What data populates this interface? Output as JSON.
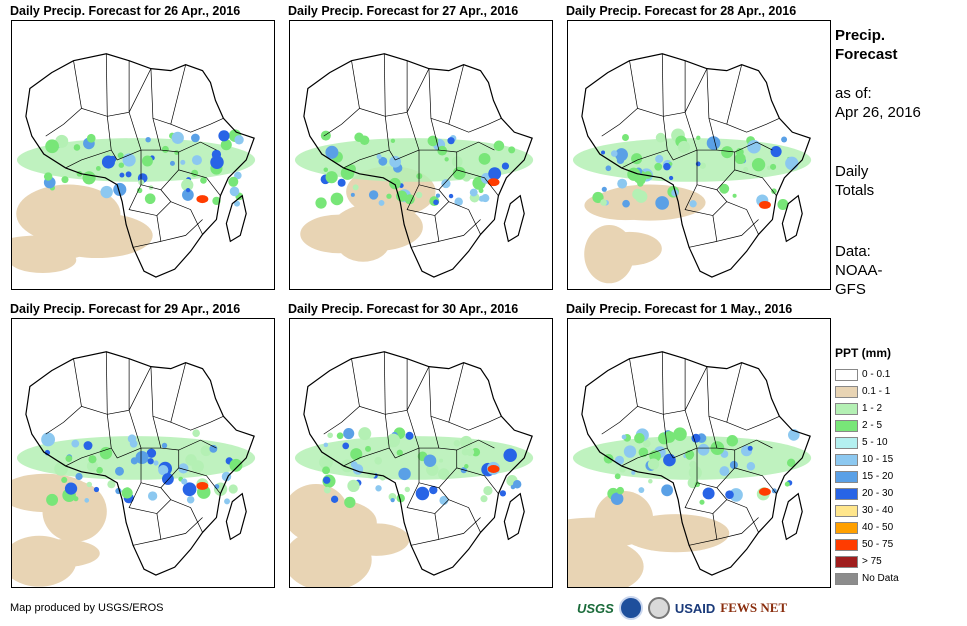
{
  "panels": [
    {
      "title": "Daily Precip. Forecast for 26 Apr., 2016"
    },
    {
      "title": "Daily Precip. Forecast for 27 Apr., 2016"
    },
    {
      "title": "Daily Precip. Forecast for 28 Apr., 2016"
    },
    {
      "title": "Daily Precip. Forecast for 29 Apr., 2016"
    },
    {
      "title": "Daily Precip. Forecast for 30 Apr., 2016"
    },
    {
      "title": "Daily Precip. Forecast for 1 May., 2016"
    }
  ],
  "sidebar": {
    "title_line1": "Precip.",
    "title_line2": "Forecast",
    "asof_label": "as of:",
    "asof_date": "Apr 26, 2016",
    "totals_line1": "Daily",
    "totals_line2": "Totals",
    "data_line1": "Data:",
    "data_line2": "NOAA-",
    "data_line3": "GFS"
  },
  "legend": {
    "title": "PPT (mm)",
    "items": [
      {
        "label": "0 - 0.1",
        "color": "#ffffff"
      },
      {
        "label": "0.1 - 1",
        "color": "#e8d4b4"
      },
      {
        "label": "1 - 2",
        "color": "#b4f0b4"
      },
      {
        "label": "2 - 5",
        "color": "#78e678"
      },
      {
        "label": "5 - 10",
        "color": "#b4f0f0"
      },
      {
        "label": "10 - 15",
        "color": "#8cc8f0"
      },
      {
        "label": "15 - 20",
        "color": "#5aa0e6"
      },
      {
        "label": "20 - 30",
        "color": "#2864e6"
      },
      {
        "label": "30 - 40",
        "color": "#ffe68c"
      },
      {
        "label": "40 - 50",
        "color": "#ffa000"
      },
      {
        "label": "50 - 75",
        "color": "#ff3c00"
      },
      {
        "label": "> 75",
        "color": "#a01e1e"
      },
      {
        "label": "No Data",
        "color": "#8c8c8c"
      }
    ]
  },
  "footer": {
    "credit": "Map produced by USGS/EROS",
    "logo_usgs": "USGS",
    "logo_usaid": "USAID",
    "logo_fews": "FEWS NET"
  }
}
